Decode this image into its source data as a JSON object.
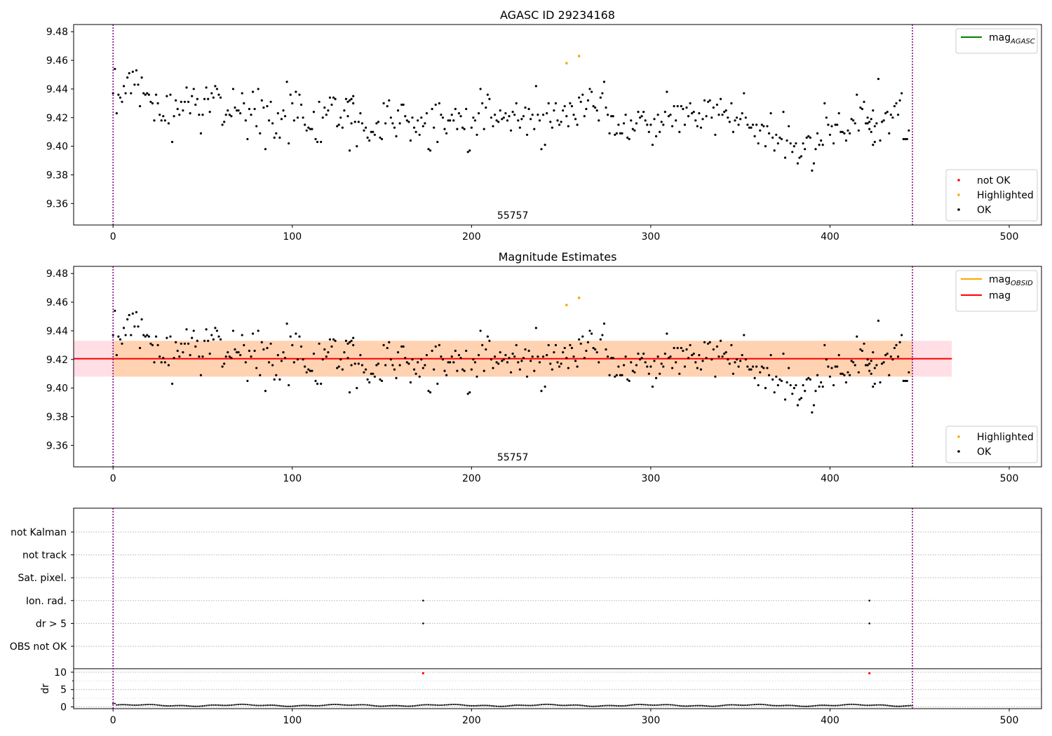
{
  "chart_data": [
    {
      "type": "scatter",
      "title": "AGASC ID 29234168",
      "ylim": [
        9.345,
        9.485
      ],
      "xlim": [
        -22,
        518
      ],
      "xticks": [
        0,
        100,
        200,
        300,
        400,
        500
      ],
      "yticks": [
        9.36,
        9.38,
        9.4,
        9.42,
        9.44,
        9.46,
        9.48
      ],
      "ytick_labels": [
        "9.36",
        "9.38",
        "9.40",
        "9.42",
        "9.44",
        "9.46",
        "9.48"
      ],
      "vlines": [
        0,
        446
      ],
      "obsid_label": "55757",
      "obsid_label_x": 223,
      "legend_top": {
        "placement": "upper-right",
        "entries": [
          {
            "label": "mag",
            "sub": "AGASC",
            "color": "#008000"
          }
        ]
      },
      "legend_bottom": {
        "placement": "lower-right",
        "entries": [
          {
            "label": "not OK",
            "color": "#ff0000"
          },
          {
            "label": "Highlighted",
            "color": "#ffa500"
          },
          {
            "label": "OK",
            "color": "#000000"
          }
        ]
      },
      "series": [
        {
          "name": "OK",
          "color": "#000000",
          "source": "mag_series"
        },
        {
          "name": "Highlighted",
          "color": "#ffa500",
          "x": [
            253,
            260
          ],
          "y": [
            9.458,
            9.463
          ]
        }
      ]
    },
    {
      "type": "scatter",
      "title": "Magnitude Estimates",
      "ylim": [
        9.345,
        9.485
      ],
      "xlim": [
        -22,
        518
      ],
      "xticks": [
        0,
        100,
        200,
        300,
        400,
        500
      ],
      "yticks": [
        9.36,
        9.38,
        9.4,
        9.42,
        9.44,
        9.46,
        9.48
      ],
      "ytick_labels": [
        "9.36",
        "9.38",
        "9.40",
        "9.42",
        "9.44",
        "9.46",
        "9.48"
      ],
      "vlines": [
        0,
        446
      ],
      "obsid_label": "55757",
      "obsid_label_x": 223,
      "mag": 9.4205,
      "mag_band": [
        9.408,
        9.433
      ],
      "mag_band_range": [
        -22,
        468
      ],
      "mag_obsid_band_range": [
        0,
        446
      ],
      "legend_top": {
        "placement": "upper-right",
        "entries": [
          {
            "label": "mag",
            "sub": "OBSID",
            "color": "#ffa500"
          },
          {
            "label": "mag",
            "sub": "",
            "color": "#ff0000"
          }
        ]
      },
      "legend_bottom": {
        "placement": "lower-right",
        "entries": [
          {
            "label": "Highlighted",
            "color": "#ffa500"
          },
          {
            "label": "OK",
            "color": "#000000"
          }
        ]
      },
      "series": [
        {
          "name": "OK",
          "color": "#000000",
          "source": "mag_series"
        },
        {
          "name": "Highlighted",
          "color": "#ffa500",
          "x": [
            253,
            260
          ],
          "y": [
            9.458,
            9.463
          ]
        }
      ]
    },
    {
      "type": "scatter",
      "title": "",
      "xlim": [
        -22,
        518
      ],
      "xticks": [
        0,
        100,
        200,
        300,
        400,
        500
      ],
      "vlines": [
        0,
        446
      ],
      "flag_labels": [
        "not Kalman",
        "not track",
        "Sat. pixel.",
        "Ion. rad.",
        "dr > 5",
        "OBS not OK"
      ],
      "flag_points": [
        {
          "flag": "Ion. rad.",
          "x": [
            173,
            422
          ]
        },
        {
          "flag": "dr > 5",
          "x": [
            173,
            422
          ]
        }
      ],
      "dr_ylabel": "dr",
      "dr_ylim": [
        -0.5,
        11
      ],
      "dr_yticks": [
        0,
        5,
        10
      ],
      "dr_ytick_labels": [
        "0",
        "5",
        "10"
      ],
      "dr_minor_yticks": [
        2.5,
        7.5
      ],
      "dr_outliers": {
        "x": [
          173,
          422
        ],
        "y": [
          9.7,
          9.7
        ],
        "color": "#ff0000"
      }
    }
  ],
  "mag_series": [
    {
      "x0": 0,
      "y": [
        9.437,
        9.454,
        9.423,
        9.436,
        9.434,
        9.431,
        9.442,
        9.437,
        9.448,
        9.451,
        9.437,
        9.452,
        9.443,
        9.453,
        9.443,
        9.428,
        9.448,
        9.437,
        9.436,
        9.437,
        9.436,
        9.431,
        9.43,
        9.418,
        9.436,
        9.43,
        9.422,
        9.418,
        9.421,
        9.418,
        9.435,
        9.416,
        9.436,
        9.403,
        9.421,
        9.432,
        9.426,
        9.422,
        9.431,
        9.425,
        9.431,
        9.441,
        9.431,
        9.423,
        9.435,
        9.44,
        9.429,
        9.433,
        9.422,
        9.409,
        9.422,
        9.433,
        9.441,
        9.433,
        9.424,
        9.437,
        9.434,
        9.442,
        9.44,
        9.436,
        9.434,
        9.415,
        9.417,
        9.422,
        9.425,
        9.422,
        9.421,
        9.44,
        9.427,
        9.425,
        9.425,
        9.423,
        9.437,
        9.43,
        9.418,
        9.405,
        9.426,
        9.422,
        9.438,
        9.426,
        9.414,
        9.44,
        9.409,
        9.432,
        9.427,
        9.398,
        9.428,
        9.418,
        9.431,
        9.416,
        9.406,
        9.409,
        9.423,
        9.406,
        9.419,
        9.425,
        9.421,
        9.445,
        9.402,
        9.436,
        9.43,
        9.418,
        9.438,
        9.42,
        9.436,
        9.429,
        9.42,
        9.415,
        9.411,
        9.413,
        9.412,
        9.412,
        9.424,
        9.405,
        9.403,
        9.431,
        9.403,
        9.42,
        9.427,
        9.422,
        9.425,
        9.434,
        9.429,
        9.434,
        9.433,
        9.414,
        9.415,
        9.42,
        9.413,
        9.425,
        9.433,
        9.421,
        9.432,
        9.416,
        9.43
      ]
    },
    {
      "x0": 131,
      "y": [
        9.431,
        9.397,
        9.433,
        9.435,
        9.417,
        9.4,
        9.417,
        9.423,
        9.416,
        9.411,
        9.413,
        9.406,
        9.404,
        9.41,
        9.41,
        9.408,
        9.416,
        9.417,
        9.406,
        9.405,
        9.43,
        9.416,
        9.428,
        9.432,
        9.42,
        9.416,
        9.413,
        9.407,
        9.425,
        9.416,
        9.429,
        9.429,
        9.421,
        9.418,
        9.417,
        9.404,
        9.42,
        9.413,
        9.41,
        9.418,
        9.408,
        9.42,
        9.414,
        9.416,
        9.423,
        9.398,
        9.397,
        9.426,
        9.413,
        9.429,
        9.403,
        9.43,
        9.422,
        9.42,
        9.412,
        9.409,
        9.418,
        9.418,
        9.422,
        9.418,
        9.426,
        9.412,
        9.423,
        9.421,
        9.413,
        9.412,
        9.426,
        9.396,
        9.397,
        9.413,
        9.42,
        9.418,
        9.408,
        9.423,
        9.44,
        9.43,
        9.412,
        9.427,
        9.436,
        9.433,
        9.42,
        9.414,
        9.422,
        9.418,
        9.417,
        9.425,
        9.419,
        9.42,
        9.423,
        9.418,
        9.421,
        9.411,
        9.424,
        9.422,
        9.43,
        9.418,
        9.413,
        9.419,
        9.421,
        9.427,
        9.408,
        9.426,
        9.419,
        9.422,
        9.412,
        9.442,
        9.422,
        9.418,
        9.398,
        9.422,
        9.401,
        9.423,
        9.43,
        9.417,
        9.413,
        9.425,
        9.43,
        9.418,
        9.415,
        9.417,
        9.425,
        9.428,
        9.421,
        9.414,
        9.43,
        9.428,
        9.422,
        9.419,
        9.415,
        9.434,
        9.431,
        9.436,
        9.421,
        9.426,
        9.432,
        9.44,
        9.438,
        9.428,
        9.427,
        9.425,
        9.418,
        9.434,
        9.437,
        9.445,
        9.427
      ]
    },
    {
      "x0": 276,
      "y": [
        9.422,
        9.409,
        9.421,
        9.421,
        9.408,
        9.409,
        9.415,
        9.409,
        9.409,
        9.416,
        9.422,
        9.406,
        9.405,
        9.418,
        9.412,
        9.411,
        9.416,
        9.424,
        9.42,
        9.421,
        9.424,
        9.418,
        9.415,
        9.41,
        9.415,
        9.401,
        9.419,
        9.407,
        9.422,
        9.41,
        9.417,
        9.415,
        9.424,
        9.438,
        9.421,
        9.422,
        9.414,
        9.428,
        9.418,
        9.428,
        9.41,
        9.428,
        9.426,
        9.415,
        9.427,
        9.421,
        9.43,
        9.423,
        9.424,
        9.418,
        9.414,
        9.423,
        9.413,
        9.419,
        9.432,
        9.421,
        9.431,
        9.432,
        9.42,
        9.427,
        9.408,
        9.429,
        9.422,
        9.433,
        9.422,
        9.424,
        9.425,
        9.42,
        9.417,
        9.43,
        9.41,
        9.418,
        9.42,
        9.415,
        9.419,
        9.423,
        9.437,
        9.42,
        9.415,
        9.413,
        9.413,
        9.415,
        9.407,
        9.415,
        9.402,
        9.411,
        9.415,
        9.414,
        9.4,
        9.414,
        9.409,
        9.423,
        9.406,
        9.397,
        9.408,
        9.402,
        9.406,
        9.405,
        9.424,
        9.392,
        9.404,
        9.414,
        9.402,
        9.396,
        9.4,
        9.402,
        9.388,
        9.392,
        9.393,
        9.402,
        9.398,
        9.406,
        9.407,
        9.406,
        9.383,
        9.388,
        9.398,
        9.409,
        9.401,
        9.404,
        9.401,
        9.43,
        9.42,
        9.415,
        9.408,
        9.414,
        9.402,
        9.415,
        9.415,
        9.423,
        9.41,
        9.41,
        9.409,
        9.404,
        9.411,
        9.409,
        9.419,
        9.418,
        9.416,
        9.436,
        9.411,
        9.427,
        9.426,
        9.431,
        9.416,
        9.42,
        9.412,
        9.419,
        9.425,
        9.414
      ]
    },
    {
      "x0": 421,
      "y": [
        9.416,
        9.417,
        9.41,
        9.401,
        9.403,
        9.416,
        9.447,
        9.404,
        9.417,
        9.418,
        9.423,
        9.424,
        9.409,
        9.422,
        9.42,
        9.428,
        9.43,
        9.422,
        9.432,
        9.437,
        9.405,
        9.405,
        9.405,
        9.411
      ]
    }
  ],
  "mag_obsid_band": [
    9.408,
    9.433
  ]
}
